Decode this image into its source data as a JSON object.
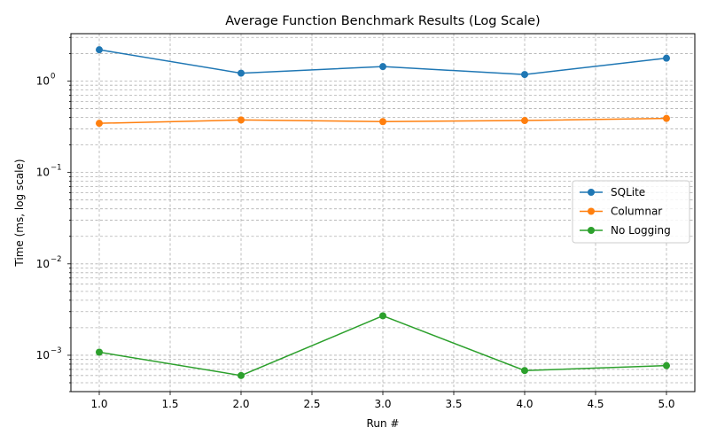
{
  "chart_data": {
    "type": "line",
    "title": "Average Function Benchmark Results (Log Scale)",
    "xlabel": "Run #",
    "ylabel": "Time (ms, log scale)",
    "x": [
      1.0,
      2.0,
      3.0,
      4.0,
      5.0
    ],
    "xlim": [
      0.8,
      5.2
    ],
    "x_ticks": [
      1.0,
      1.5,
      2.0,
      2.5,
      3.0,
      3.5,
      4.0,
      4.5,
      5.0
    ],
    "x_tick_labels": [
      "1.0",
      "1.5",
      "2.0",
      "2.5",
      "3.0",
      "3.5",
      "4.0",
      "4.5",
      "5.0"
    ],
    "ylim": [
      0.0004,
      3.3
    ],
    "yscale": "log",
    "y_major_ticks": [
      0.001,
      0.01,
      0.1,
      1
    ],
    "y_tick_labels": [
      "10",
      "10",
      "10",
      "10"
    ],
    "y_tick_exponents": [
      "−3",
      "−2",
      "−1",
      "0"
    ],
    "grid": "both, dashed",
    "legend_position": "center-right",
    "series": [
      {
        "name": "SQLite",
        "color": "#1f77b4",
        "values": [
          2.2,
          1.22,
          1.44,
          1.18,
          1.78
        ]
      },
      {
        "name": "Columnar",
        "color": "#ff7f0e",
        "values": [
          0.345,
          0.375,
          0.36,
          0.37,
          0.39
        ]
      },
      {
        "name": "No Logging",
        "color": "#2ca02c",
        "values": [
          0.00108,
          0.0006,
          0.0027,
          0.00068,
          0.00077
        ]
      }
    ]
  }
}
